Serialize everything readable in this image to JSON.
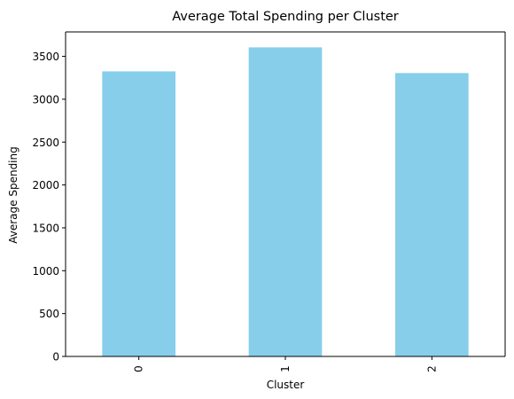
{
  "chart_data": {
    "type": "bar",
    "title": "Average Total Spending per Cluster",
    "xlabel": "Cluster",
    "ylabel": "Average Spending",
    "categories": [
      "0",
      "1",
      "2"
    ],
    "values": [
      3325,
      3605,
      3305
    ],
    "ylim": [
      0,
      3785
    ],
    "yticks": [
      0,
      500,
      1000,
      1500,
      2000,
      2500,
      3000,
      3500
    ],
    "ytick_labels": [
      "0",
      "500",
      "1000",
      "1500",
      "2000",
      "2500",
      "3000",
      "3500"
    ],
    "xtick_rotation": "vertical",
    "bar_color": "#87CEEB",
    "grid": false,
    "legend": "none"
  }
}
